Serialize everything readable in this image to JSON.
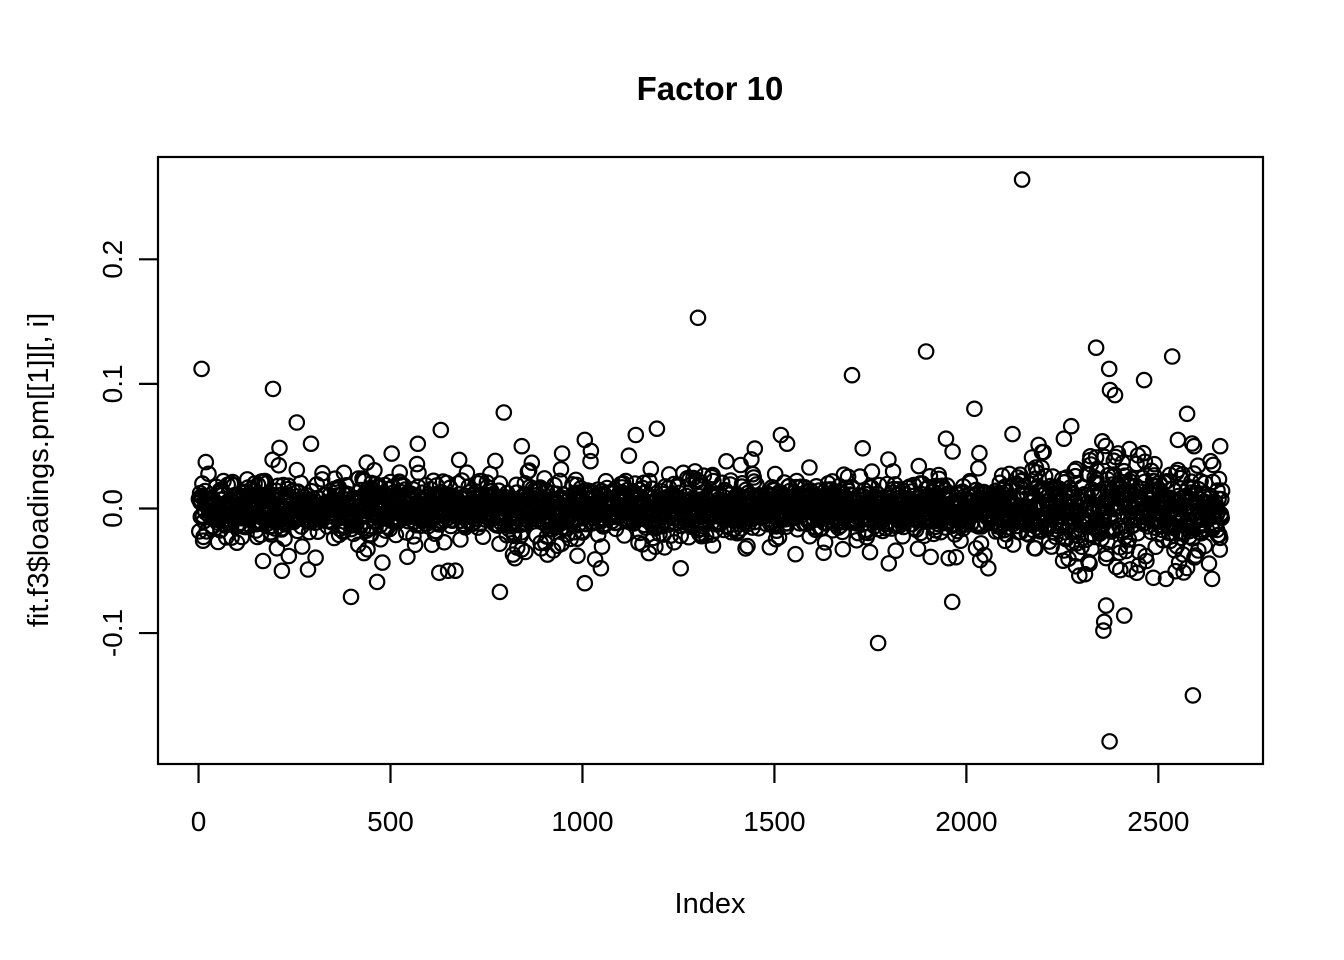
{
  "page": {
    "background_color": "#ffffff",
    "foreground_color": "#000000",
    "description": "Base R scatter plot of factor loadings"
  },
  "chart_data": {
    "type": "scatter",
    "title": "Factor 10",
    "xlabel": "Index",
    "ylabel": "fit.f3$loadings.pm[[1]][, i]",
    "x_tick_values": [
      0,
      500,
      1000,
      1500,
      2000,
      2500
    ],
    "x_tick_labels": [
      "0",
      "500",
      "1000",
      "1500",
      "2000",
      "2500"
    ],
    "y_tick_values": [
      -0.1,
      0.0,
      0.1,
      0.2
    ],
    "y_tick_labels": [
      "-0.1",
      "0.0",
      "0.1",
      "0.2"
    ],
    "xlim": [
      -105.6,
      2772.6
    ],
    "ylim": [
      -0.2051,
      0.2821
    ],
    "grid": false,
    "legend": null,
    "n_points": 2666,
    "marker": {
      "shape": "open-circle",
      "radius_px": 7.2,
      "stroke_px": 2.2,
      "color": "#000000"
    },
    "cloud": {
      "seed": 42,
      "components": [
        {
          "weight": 0.78,
          "sd": 0.01
        },
        {
          "weight": 0.16,
          "sd": 0.018
        },
        {
          "weight": 0.06,
          "sd": 0.03
        }
      ],
      "clip": 0.06,
      "variance_boost": [
        {
          "from": 2100,
          "to": 2250,
          "mult": 1.25
        },
        {
          "from": 2250,
          "to": 2450,
          "mult": 1.9
        },
        {
          "from": 2450,
          "to": 2666,
          "mult": 1.45
        }
      ]
    },
    "outliers": [
      [
        8,
        0.112
      ],
      [
        194,
        0.096
      ],
      [
        217,
        -0.05
      ],
      [
        256,
        0.069
      ],
      [
        285,
        -0.049
      ],
      [
        293,
        0.052
      ],
      [
        397,
        -0.071
      ],
      [
        503,
        0.044
      ],
      [
        631,
        0.063
      ],
      [
        650,
        -0.05
      ],
      [
        785,
        -0.067
      ],
      [
        795,
        0.077
      ],
      [
        842,
        0.05
      ],
      [
        1006,
        0.055
      ],
      [
        1006,
        -0.06
      ],
      [
        1048,
        -0.048
      ],
      [
        1139,
        0.059
      ],
      [
        1194,
        0.064
      ],
      [
        1256,
        -0.048
      ],
      [
        1301,
        0.153
      ],
      [
        1517,
        0.059
      ],
      [
        1533,
        0.052
      ],
      [
        1702,
        0.107
      ],
      [
        1770,
        -0.108
      ],
      [
        1895,
        0.126
      ],
      [
        1947,
        0.056
      ],
      [
        1963,
        -0.075
      ],
      [
        2021,
        0.08
      ],
      [
        2057,
        -0.048
      ],
      [
        2145,
        0.264
      ],
      [
        2254,
        0.056
      ],
      [
        2273,
        0.066
      ],
      [
        2338,
        0.129
      ],
      [
        2357,
        -0.098
      ],
      [
        2359,
        -0.091
      ],
      [
        2364,
        -0.078
      ],
      [
        2372,
        0.112
      ],
      [
        2374,
        0.095
      ],
      [
        2387,
        0.091
      ],
      [
        2411,
        -0.086
      ],
      [
        2463,
        0.103
      ],
      [
        2536,
        0.122
      ],
      [
        2551,
        0.055
      ],
      [
        2575,
        0.076
      ],
      [
        2590,
        -0.15
      ],
      [
        2593,
        0.05
      ],
      [
        2661,
        0.05
      ],
      [
        2373,
        -0.187
      ]
    ]
  }
}
